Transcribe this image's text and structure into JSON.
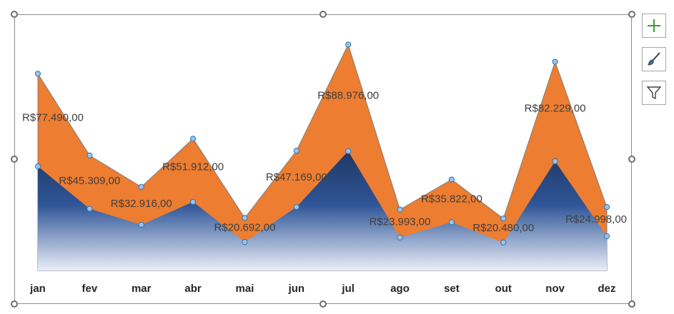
{
  "chart_data": {
    "type": "area",
    "categories": [
      "jan",
      "fev",
      "mar",
      "abr",
      "mai",
      "jun",
      "jul",
      "ago",
      "set",
      "out",
      "nov",
      "dez"
    ],
    "series": [
      {
        "values": [
          77490,
          45309,
          32916,
          51912,
          20692,
          47169,
          88976,
          23993,
          35822,
          20480,
          82229,
          24998
        ],
        "color": "#ed7d31",
        "labels": [
          "R$77.490,00",
          "R$45.309,00",
          "R$32.916,00",
          "R$51.912,00",
          "R$20.692,00",
          "R$47.169,00",
          "R$88.976,00",
          "R$23.993,00",
          "R$35.822,00",
          "R$20.480,00",
          "R$82.229,00",
          "R$24.998,00"
        ]
      },
      {
        "values": [
          41000,
          24300,
          18000,
          27000,
          11200,
          25000,
          47000,
          13000,
          19000,
          11000,
          43000,
          13500
        ],
        "color": "#203864"
      }
    ],
    "ylim": [
      0,
      95000
    ],
    "grid": false,
    "legend": "none"
  },
  "colors": {
    "orange": "#ed7d31",
    "navy": "#203864",
    "marker": "#9dc3e6",
    "marker_border": "#2e75b6"
  },
  "side_buttons": {
    "add": "plus-icon",
    "style": "brush-icon",
    "filter": "filter-icon"
  }
}
